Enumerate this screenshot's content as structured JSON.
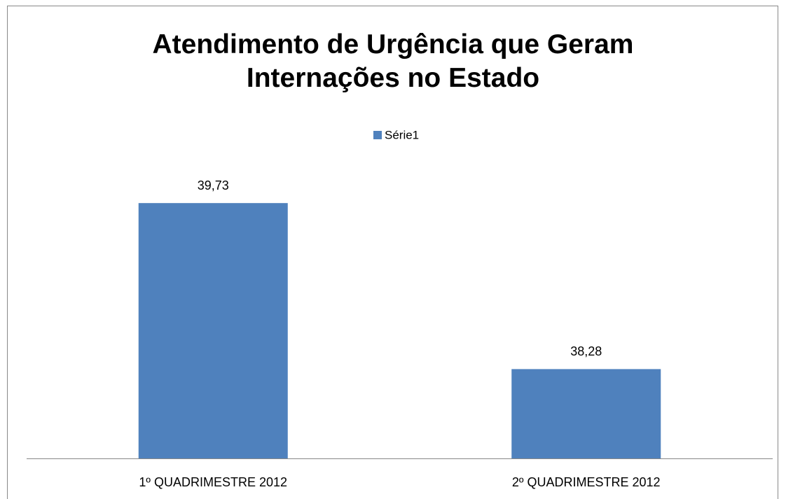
{
  "chart_data": {
    "type": "bar",
    "title": "Atendimento de Urgência que Geram Internações no Estado",
    "categories": [
      "1º QUADRIMESTRE 2012",
      "2º QUADRIMESTRE 2012"
    ],
    "series": [
      {
        "name": "Série1",
        "color": "#4f81bd",
        "values": [
          39.73,
          38.28
        ],
        "value_labels": [
          "39,73",
          "38,28"
        ]
      }
    ],
    "ylim": [
      37.5,
      40
    ]
  }
}
